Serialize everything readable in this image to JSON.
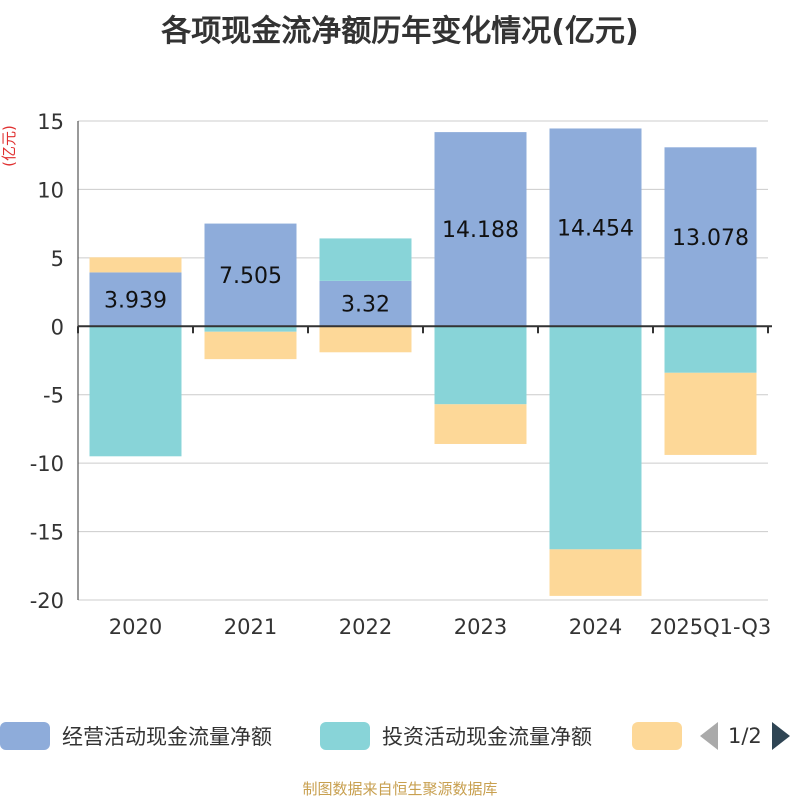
{
  "chart_data": {
    "type": "bar",
    "stacked": true,
    "title": "各项现金流净额历年变化情况(亿元)",
    "ylabel": "(亿元)",
    "xlabel": "",
    "ylim": [
      -20,
      15
    ],
    "yticks": [
      15,
      10,
      5,
      0,
      -5,
      -10,
      -15,
      -20
    ],
    "categories": [
      "2020",
      "2021",
      "2022",
      "2023",
      "2024",
      "2025Q1-Q3"
    ],
    "series": [
      {
        "name": "经营活动现金流量净额",
        "color": "#8eacda",
        "values": [
          3.939,
          7.505,
          3.32,
          14.188,
          14.454,
          13.078
        ],
        "show_labels": true
      },
      {
        "name": "投资活动现金流量净额",
        "color": "#88d4d8",
        "values": [
          -9.5,
          -0.4,
          3.1,
          -5.7,
          -16.3,
          -3.4
        ],
        "show_labels": false
      },
      {
        "name": "",
        "color": "#fdd898",
        "values": [
          1.1,
          -2.0,
          -1.9,
          -2.9,
          -3.4,
          -6.0
        ],
        "show_labels": false
      }
    ],
    "grid": true,
    "legend": "bottom"
  },
  "legend": {
    "items": [
      {
        "label": "经营活动现金流量净额",
        "color": "#8eacda"
      },
      {
        "label": "投资活动现金流量净额",
        "color": "#88d4d8"
      },
      {
        "label": "",
        "color": "#fdd898"
      }
    ],
    "page": "1/2"
  },
  "source": "制图数据来自恒生聚源数据库"
}
